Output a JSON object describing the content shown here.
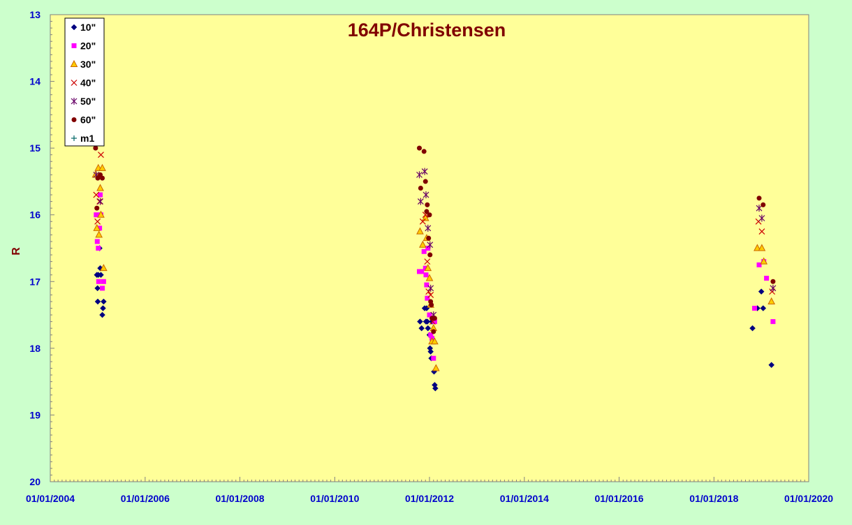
{
  "chart_data": {
    "type": "scatter",
    "title": "164P/Christensen",
    "xlabel": "",
    "ylabel": "R",
    "xlim": [
      "2004-01-01",
      "2020-01-01"
    ],
    "ylim": [
      13,
      20
    ],
    "y_inverted": true,
    "grid": false,
    "legend_position": "top-left",
    "x_tick_labels": [
      "01/01/2004",
      "01/01/2006",
      "01/01/2008",
      "01/01/2010",
      "01/01/2012",
      "01/01/2014",
      "01/01/2016",
      "01/01/2018",
      "01/01/2020"
    ],
    "y_tick_labels": [
      "13",
      "14",
      "15",
      "16",
      "17",
      "18",
      "19",
      "20"
    ],
    "colors": {
      "plot_bg": "#ffff99",
      "page_bg": "#ccffcc",
      "title": "#800000",
      "ticks": "#0000cc"
    },
    "series": [
      {
        "name": "10\"",
        "marker": "diamond",
        "color": "#000080",
        "points": [
          [
            "2004-12-25",
            16.9
          ],
          [
            "2004-12-30",
            17.1
          ],
          [
            "2005-01-01",
            17.3
          ],
          [
            "2005-01-05",
            16.9
          ],
          [
            "2005-01-15",
            16.5
          ],
          [
            "2005-01-20",
            16.8
          ],
          [
            "2005-01-25",
            16.9
          ],
          [
            "2005-02-05",
            17.5
          ],
          [
            "2005-02-10",
            17.4
          ],
          [
            "2005-02-15",
            17.3
          ],
          [
            "2011-10-20",
            17.6
          ],
          [
            "2011-11-01",
            17.7
          ],
          [
            "2011-11-25",
            17.4
          ],
          [
            "2011-12-05",
            17.6
          ],
          [
            "2011-12-10",
            17.4
          ],
          [
            "2011-12-15",
            17.6
          ],
          [
            "2011-12-20",
            17.7
          ],
          [
            "2012-01-01",
            17.8
          ],
          [
            "2012-01-05",
            18.0
          ],
          [
            "2012-01-10",
            18.05
          ],
          [
            "2012-01-15",
            18.15
          ],
          [
            "2012-01-20",
            17.6
          ],
          [
            "2012-02-05",
            18.35
          ],
          [
            "2012-02-10",
            18.55
          ],
          [
            "2012-02-15",
            18.6
          ],
          [
            "2018-10-25",
            17.7
          ],
          [
            "2018-12-01",
            17.4
          ],
          [
            "2019-01-01",
            17.15
          ],
          [
            "2019-01-15",
            17.4
          ],
          [
            "2019-03-20",
            18.25
          ]
        ]
      },
      {
        "name": "20\"",
        "marker": "square",
        "color": "#ff00ff",
        "points": [
          [
            "2004-12-20",
            16.0
          ],
          [
            "2004-12-28",
            16.4
          ],
          [
            "2005-01-05",
            16.5
          ],
          [
            "2005-01-08",
            17.0
          ],
          [
            "2005-01-15",
            16.2
          ],
          [
            "2005-01-20",
            15.7
          ],
          [
            "2005-01-25",
            16.0
          ],
          [
            "2005-02-05",
            17.1
          ],
          [
            "2005-02-15",
            17.0
          ],
          [
            "2011-10-15",
            16.85
          ],
          [
            "2011-11-01",
            16.85
          ],
          [
            "2011-11-20",
            16.55
          ],
          [
            "2011-12-01",
            16.8
          ],
          [
            "2011-12-05",
            16.9
          ],
          [
            "2011-12-10",
            17.05
          ],
          [
            "2011-12-15",
            17.25
          ],
          [
            "2011-12-20",
            16.5
          ],
          [
            "2012-01-01",
            17.5
          ],
          [
            "2012-01-10",
            17.8
          ],
          [
            "2012-01-20",
            17.85
          ],
          [
            "2012-02-01",
            18.15
          ],
          [
            "2012-02-10",
            17.6
          ],
          [
            "2018-11-10",
            17.4
          ],
          [
            "2018-12-15",
            16.75
          ],
          [
            "2019-01-20",
            16.7
          ],
          [
            "2019-02-10",
            16.95
          ],
          [
            "2019-04-01",
            17.6
          ]
        ]
      },
      {
        "name": "30\"",
        "marker": "triangle",
        "color": "#ffa500",
        "points": [
          [
            "2004-12-15",
            15.4
          ],
          [
            "2004-12-25",
            16.2
          ],
          [
            "2005-01-05",
            15.3
          ],
          [
            "2005-01-10",
            16.3
          ],
          [
            "2005-01-20",
            15.6
          ],
          [
            "2005-01-25",
            16.0
          ],
          [
            "2005-02-05",
            15.3
          ],
          [
            "2005-02-15",
            16.8
          ],
          [
            "2011-10-20",
            16.25
          ],
          [
            "2011-11-10",
            16.45
          ],
          [
            "2011-12-01",
            16.05
          ],
          [
            "2011-12-10",
            16.35
          ],
          [
            "2011-12-20",
            16.8
          ],
          [
            "2012-01-01",
            16.95
          ],
          [
            "2012-01-10",
            17.35
          ],
          [
            "2012-01-20",
            17.9
          ],
          [
            "2012-02-01",
            17.7
          ],
          [
            "2012-02-10",
            17.9
          ],
          [
            "2012-02-20",
            18.3
          ],
          [
            "2018-12-01",
            16.5
          ],
          [
            "2019-01-05",
            16.5
          ],
          [
            "2019-01-20",
            16.7
          ],
          [
            "2019-03-20",
            17.3
          ]
        ]
      },
      {
        "name": "40\"",
        "marker": "x",
        "color": "#cc0000",
        "points": [
          [
            "2004-12-20",
            15.7
          ],
          [
            "2004-12-30",
            16.1
          ],
          [
            "2005-01-15",
            15.8
          ],
          [
            "2005-01-25",
            15.1
          ],
          [
            "2011-11-10",
            16.1
          ],
          [
            "2011-12-01",
            16.0
          ],
          [
            "2011-12-15",
            16.7
          ],
          [
            "2011-12-25",
            17.15
          ],
          [
            "2012-01-10",
            17.2
          ],
          [
            "2012-01-25",
            17.6
          ],
          [
            "2018-12-10",
            16.1
          ],
          [
            "2019-01-05",
            16.25
          ],
          [
            "2019-03-25",
            17.15
          ]
        ]
      },
      {
        "name": "50\"",
        "marker": "star",
        "color": "#660066",
        "points": [
          [
            "2004-12-20",
            15.4
          ],
          [
            "2005-01-20",
            15.8
          ],
          [
            "2011-10-15",
            15.4
          ],
          [
            "2011-10-25",
            15.8
          ],
          [
            "2011-11-25",
            15.35
          ],
          [
            "2011-12-05",
            15.7
          ],
          [
            "2011-12-20",
            16.2
          ],
          [
            "2012-01-05",
            16.45
          ],
          [
            "2012-01-10",
            17.1
          ],
          [
            "2012-02-01",
            17.5
          ],
          [
            "2018-12-15",
            15.9
          ],
          [
            "2019-01-05",
            16.05
          ],
          [
            "2019-04-01",
            17.1
          ]
        ]
      },
      {
        "name": "60\"",
        "marker": "circle",
        "color": "#800000",
        "points": [
          [
            "2004-12-15",
            15.0
          ],
          [
            "2004-12-25",
            15.9
          ],
          [
            "2005-01-01",
            15.45
          ],
          [
            "2005-01-20",
            15.4
          ],
          [
            "2005-02-05",
            15.45
          ],
          [
            "2011-10-15",
            15.0
          ],
          [
            "2011-10-25",
            15.6
          ],
          [
            "2011-11-20",
            15.05
          ],
          [
            "2011-12-01",
            15.5
          ],
          [
            "2011-12-10",
            15.95
          ],
          [
            "2011-12-15",
            15.85
          ],
          [
            "2012-01-01",
            16.0
          ],
          [
            "2011-12-25",
            16.35
          ],
          [
            "2012-01-05",
            16.6
          ],
          [
            "2012-01-10",
            17.3
          ],
          [
            "2012-01-15",
            17.35
          ],
          [
            "2012-01-20",
            17.55
          ],
          [
            "2012-02-01",
            17.75
          ],
          [
            "2012-02-10",
            17.55
          ],
          [
            "2018-12-15",
            15.75
          ],
          [
            "2019-01-15",
            15.85
          ],
          [
            "2019-04-01",
            17.0
          ]
        ]
      },
      {
        "name": "m1",
        "marker": "plus",
        "color": "#006666",
        "points": []
      }
    ]
  }
}
